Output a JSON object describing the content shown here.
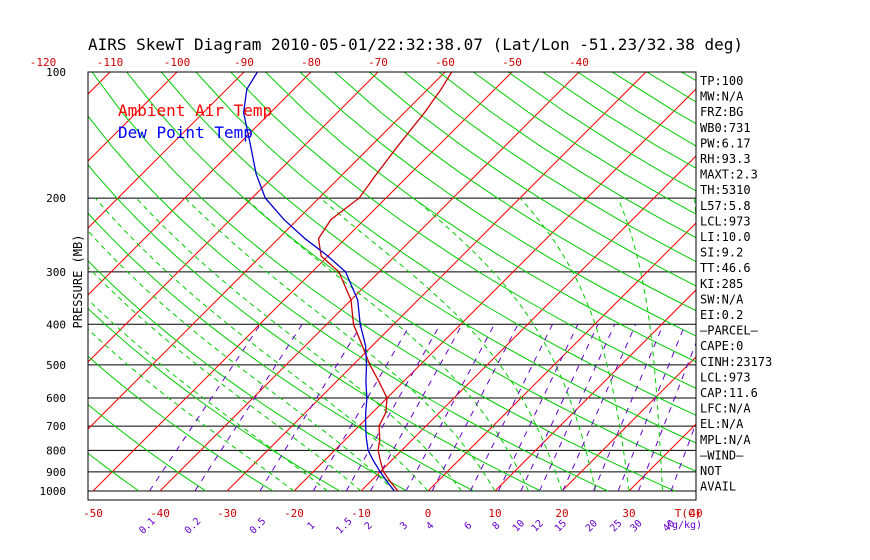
{
  "chart_data": {
    "type": "line",
    "title": "AIRS SkewT Diagram 2010-05-01/22:32:38.07 (Lat/Lon -51.23/32.38 deg)",
    "ylabel": "PRESSURE (MB)",
    "xlabel_bottom": "T(C)",
    "xlabel_mixing": "(g/kg)",
    "pressure_ticks": [
      100,
      200,
      300,
      400,
      500,
      600,
      700,
      800,
      900,
      1000
    ],
    "temp_ticks_top": [
      -120,
      -110,
      -100,
      -90,
      -80,
      -70,
      -60,
      -50,
      -40
    ],
    "temp_ticks_bottom": [
      -50,
      -40,
      -30,
      -20,
      -10,
      0,
      10,
      20,
      30,
      40
    ],
    "mixing_ratio_labels": [
      "0.1",
      "0.2",
      "0.5",
      "1",
      "1.5",
      "2",
      "3",
      "4",
      "6",
      "8",
      "10",
      "12",
      "15",
      "20",
      "25",
      "30",
      "40"
    ],
    "ylim": [
      1000,
      100
    ],
    "legend": [
      {
        "label": "Ambient Air Temp",
        "color": "#ff0000"
      },
      {
        "label": "Dew Point Temp",
        "color": "#0000ff"
      }
    ],
    "series": [
      {
        "name": "Ambient Air Temp",
        "color": "#cc0000",
        "points": [
          {
            "p": 1000,
            "t": -4.5
          },
          {
            "p": 950,
            "t": -7
          },
          {
            "p": 900,
            "t": -9.5
          },
          {
            "p": 850,
            "t": -11.5
          },
          {
            "p": 800,
            "t": -13.5
          },
          {
            "p": 750,
            "t": -15
          },
          {
            "p": 700,
            "t": -17
          },
          {
            "p": 650,
            "t": -18
          },
          {
            "p": 600,
            "t": -20
          },
          {
            "p": 550,
            "t": -23.5
          },
          {
            "p": 500,
            "t": -27.5
          },
          {
            "p": 450,
            "t": -31.5
          },
          {
            "p": 400,
            "t": -36
          },
          {
            "p": 350,
            "t": -40
          },
          {
            "p": 300,
            "t": -46
          },
          {
            "p": 275,
            "t": -51
          },
          {
            "p": 250,
            "t": -54
          },
          {
            "p": 225,
            "t": -55
          },
          {
            "p": 200,
            "t": -54
          },
          {
            "p": 175,
            "t": -55
          },
          {
            "p": 150,
            "t": -56
          },
          {
            "p": 125,
            "t": -57
          },
          {
            "p": 110,
            "t": -58
          },
          {
            "p": 100,
            "t": -59
          }
        ]
      },
      {
        "name": "Dew Point Temp",
        "color": "#0000cc",
        "points": [
          {
            "p": 1000,
            "t": -5
          },
          {
            "p": 950,
            "t": -7.5
          },
          {
            "p": 900,
            "t": -10
          },
          {
            "p": 850,
            "t": -12.5
          },
          {
            "p": 800,
            "t": -15
          },
          {
            "p": 750,
            "t": -17
          },
          {
            "p": 700,
            "t": -19
          },
          {
            "p": 650,
            "t": -21
          },
          {
            "p": 600,
            "t": -23
          },
          {
            "p": 550,
            "t": -25.5
          },
          {
            "p": 500,
            "t": -28
          },
          {
            "p": 450,
            "t": -31
          },
          {
            "p": 400,
            "t": -35
          },
          {
            "p": 350,
            "t": -39
          },
          {
            "p": 300,
            "t": -45
          },
          {
            "p": 275,
            "t": -50
          },
          {
            "p": 250,
            "t": -56
          },
          {
            "p": 225,
            "t": -62
          },
          {
            "p": 200,
            "t": -68
          },
          {
            "p": 175,
            "t": -73
          },
          {
            "p": 150,
            "t": -78
          },
          {
            "p": 125,
            "t": -84
          },
          {
            "p": 110,
            "t": -87
          },
          {
            "p": 100,
            "t": -88
          }
        ]
      }
    ],
    "grid_lines": {
      "isotherms_color": "#ff0000",
      "dry_adiabats_color": "#00cc00",
      "moist_adiabats_color": "#00cc00",
      "mixing_ratio_color": "#6600cc"
    },
    "indices": [
      "TP:100",
      "MW:N/A",
      "FRZ:BG",
      "WB0:731",
      "PW:6.17",
      "RH:93.3",
      "MAXT:2.3",
      "TH:5310",
      "L57:5.8",
      "LCL:973",
      "LI:10.0",
      "SI:9.2",
      "TT:46.6",
      "KI:285",
      "SW:N/A",
      "EI:0.2",
      "—PARCEL—",
      "CAPE:0",
      "CINH:23173",
      "LCL:973",
      "CAP:11.6",
      "LFC:N/A",
      "EL:N/A",
      "MPL:N/A",
      "—WIND—",
      "NOT",
      "AVAIL"
    ]
  }
}
